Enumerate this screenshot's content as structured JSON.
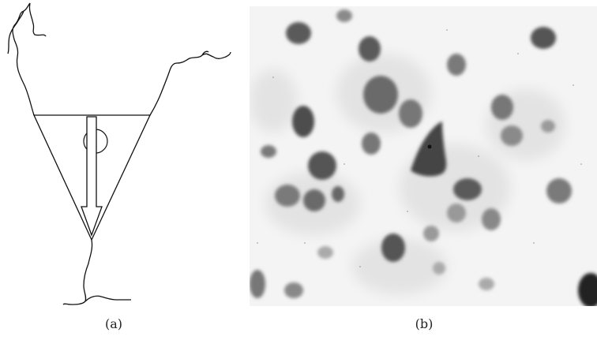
{
  "figure": {
    "panels": [
      {
        "id": "a",
        "caption": "(a)",
        "content": "pyramidal-neuron-schematic"
      },
      {
        "id": "b",
        "caption": "(b)",
        "content": "micrograph-stained-neurons"
      }
    ],
    "colors": {
      "line": "#111111",
      "background": "#ffffff",
      "micrograph_background": "#f2f2f2",
      "cell_stain": "#4a4a4a"
    }
  }
}
